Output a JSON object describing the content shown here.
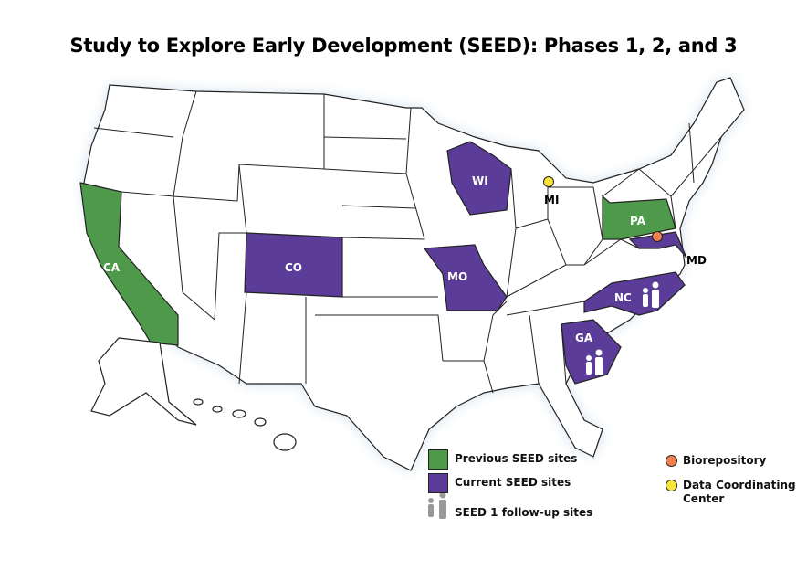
{
  "title": "Study to Explore Early Development (SEED): Phases 1, 2, and 3",
  "colors": {
    "previous": "#4f9a4a",
    "current": "#5b3d99",
    "biorepository": "#f07f4f",
    "data_center": "#f7e53a",
    "follow_up_icon": "#999999"
  },
  "states": {
    "previous": [
      "CA",
      "PA"
    ],
    "current": [
      "CO",
      "WI",
      "MO",
      "MD",
      "NC",
      "GA"
    ],
    "data_center": "MI",
    "follow_up": [
      "NC",
      "GA"
    ]
  },
  "labels": {
    "CA": "CA",
    "CO": "CO",
    "WI": "WI",
    "MO": "MO",
    "PA": "PA",
    "MD": "MD",
    "NC": "NC",
    "GA": "GA",
    "MI": "MI"
  },
  "legend": {
    "previous": "Previous SEED sites",
    "current": "Current SEED sites",
    "follow_up": "SEED 1 follow-up sites",
    "biorepository": "Biorepository",
    "data_center_line1": "Data Coordinating",
    "data_center_line2": "Center"
  },
  "icons": {
    "follow_up": "people-icon",
    "biorepository": "orange-dot",
    "data_center": "yellow-dot"
  }
}
